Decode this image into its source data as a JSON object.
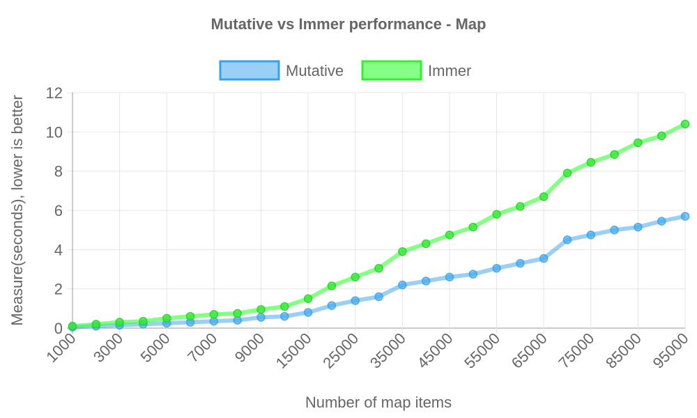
{
  "chart_data": {
    "type": "line",
    "title": "Mutative vs Immer performance - Map",
    "xlabel": "Number of map items",
    "ylabel": "Measure(seconds), lower is better",
    "ylim": [
      0,
      12
    ],
    "y_ticks": [
      "0",
      "2",
      "4",
      "6",
      "8",
      "10",
      "12"
    ],
    "categories": [
      "1000",
      "2000",
      "3000",
      "4000",
      "5000",
      "6000",
      "7000",
      "8000",
      "9000",
      "10000",
      "15000",
      "20000",
      "25000",
      "30000",
      "35000",
      "40000",
      "45000",
      "50000",
      "55000",
      "60000",
      "65000",
      "70000",
      "75000",
      "80000",
      "85000",
      "90000",
      "95000"
    ],
    "x_tick_labels": [
      "1000",
      "3000",
      "5000",
      "7000",
      "9000",
      "15000",
      "25000",
      "35000",
      "45000",
      "55000",
      "65000",
      "75000",
      "85000",
      "95000"
    ],
    "grid": true,
    "legend_position": "top",
    "series": [
      {
        "name": "Mutative",
        "color": "#36A2EB",
        "values": [
          0.05,
          0.1,
          0.15,
          0.2,
          0.25,
          0.3,
          0.35,
          0.4,
          0.55,
          0.6,
          0.8,
          1.15,
          1.4,
          1.6,
          2.2,
          2.4,
          2.6,
          2.75,
          3.05,
          3.3,
          3.55,
          4.5,
          4.75,
          5.0,
          5.15,
          5.45,
          5.7
        ]
      },
      {
        "name": "Immer",
        "color": "#33FF33",
        "values": [
          0.1,
          0.2,
          0.3,
          0.35,
          0.5,
          0.6,
          0.7,
          0.75,
          0.95,
          1.1,
          1.5,
          2.15,
          2.6,
          3.05,
          3.9,
          4.3,
          4.75,
          5.15,
          5.8,
          6.2,
          6.7,
          7.9,
          8.45,
          8.85,
          9.45,
          9.8,
          10.4
        ]
      }
    ]
  }
}
